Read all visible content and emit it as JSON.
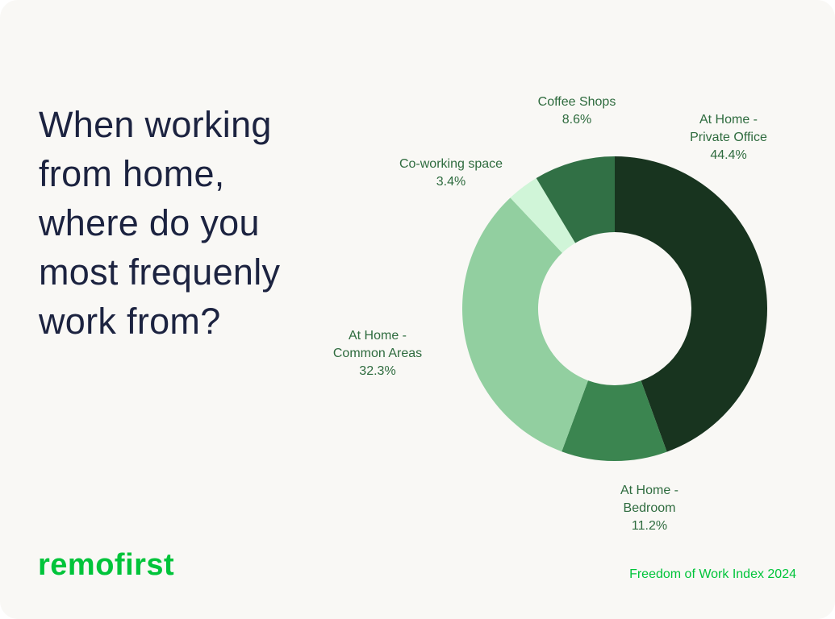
{
  "title": "When working from home, where do you most frequenly work from?",
  "logo": "remofirst",
  "footer": "Freedom of Work Index 2024",
  "chart_data": {
    "type": "pie",
    "subtype": "donut",
    "title": "When working from home, where do you most frequenly work from?",
    "start": "top, clockwise",
    "slices": [
      {
        "label_lines": [
          "At Home -",
          "Private Office"
        ],
        "label": "At Home - Private Office",
        "value": 44.4,
        "value_label": "44.4%",
        "color": "#18341f"
      },
      {
        "label_lines": [
          "At Home -",
          "Bedroom"
        ],
        "label": "At Home - Bedroom",
        "value": 11.2,
        "value_label": "11.2%",
        "color": "#3b8550"
      },
      {
        "label_lines": [
          "At Home -",
          "Common Areas"
        ],
        "label": "At Home - Common Areas",
        "value": 32.3,
        "value_label": "32.3%",
        "color": "#92cfa0"
      },
      {
        "label_lines": [
          "Co-working space"
        ],
        "label": "Co-working space",
        "value": 3.4,
        "value_label": "3.4%",
        "color": "#d0f5d8"
      },
      {
        "label_lines": [
          "Coffee Shops"
        ],
        "label": "Coffee Shops",
        "value": 8.6,
        "value_label": "8.6%",
        "color": "#317045"
      }
    ]
  }
}
